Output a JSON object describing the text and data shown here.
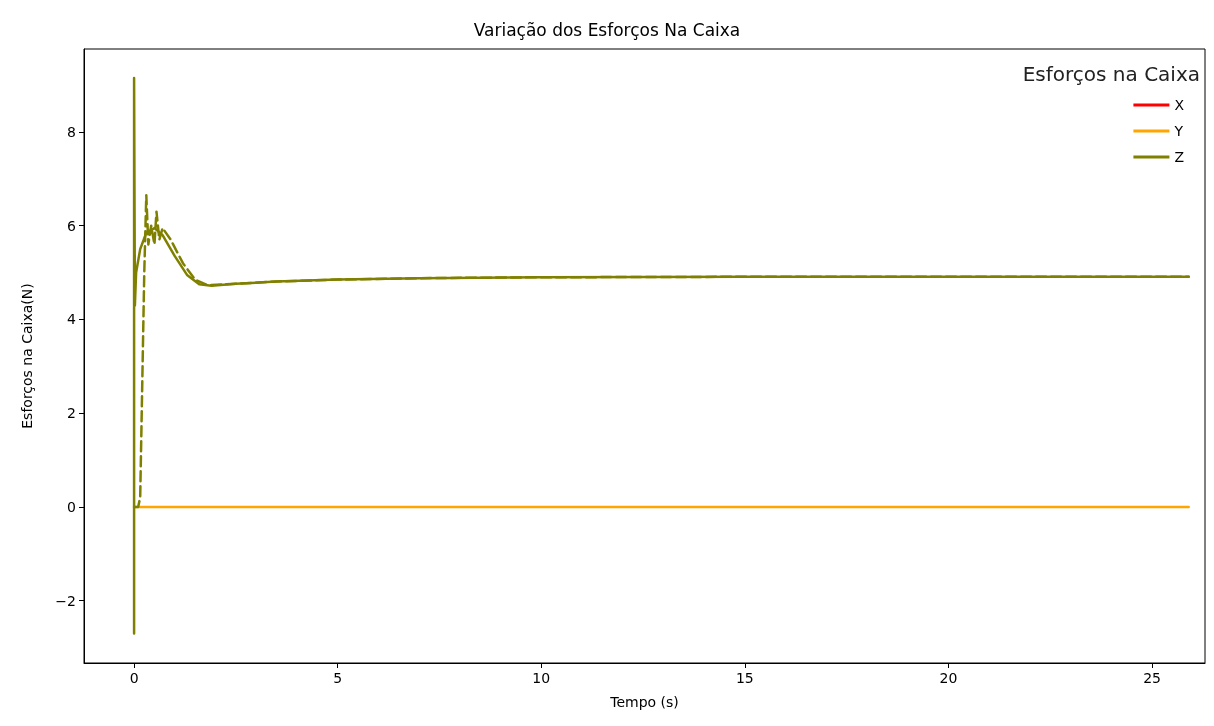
{
  "chart_data": {
    "type": "line",
    "title": "Variação dos Esforços Na Caixa",
    "xlabel": "Tempo (s)",
    "ylabel": "Esforços na Caixa(N)",
    "legend_title": "Esforços na Caixa",
    "legend": "top right",
    "grid": false,
    "marker": "none",
    "xlim": [
      -1.23,
      26.3
    ],
    "xticks": [
      0,
      5,
      10,
      15,
      20,
      25
    ],
    "ylim": [
      -3.33,
      9.77
    ],
    "yticks": [
      -2,
      0,
      2,
      4,
      6,
      8
    ],
    "series": [
      {
        "name": "X",
        "color": "#ff0000"
      },
      {
        "name": "Y",
        "color": "#ffa500",
        "x": [
          0,
          25.9
        ],
        "values": [
          0,
          0
        ]
      },
      {
        "name": "Z",
        "color": "#808000",
        "x": [
          0,
          0,
          0.02,
          0.05,
          0.15,
          0.3,
          0.5,
          0.7,
          1.0,
          1.3,
          1.6,
          1.9,
          2.5,
          3.5,
          5,
          7,
          10,
          15,
          20,
          25.9
        ],
        "values": [
          -2.7,
          9.15,
          4.3,
          5.0,
          5.5,
          5.85,
          5.95,
          5.8,
          5.35,
          4.95,
          4.75,
          4.72,
          4.76,
          4.81,
          4.85,
          4.88,
          4.9,
          4.91,
          4.91,
          4.91
        ]
      },
      {
        "color": "#808000",
        "line_style": "dashed",
        "x": [
          0,
          0.1,
          0.15,
          0.25,
          0.3,
          0.35,
          0.42,
          0.5,
          0.55,
          0.62,
          0.7,
          0.9,
          1.2,
          1.5,
          1.8,
          2.5,
          3.5,
          5,
          7,
          10,
          15,
          20,
          25.9
        ],
        "values": [
          0,
          0,
          0.2,
          5.0,
          6.65,
          5.6,
          6.0,
          5.6,
          6.3,
          5.7,
          5.95,
          5.7,
          5.2,
          4.85,
          4.73,
          4.76,
          4.81,
          4.85,
          4.88,
          4.9,
          4.91,
          4.91,
          4.91
        ]
      }
    ]
  }
}
